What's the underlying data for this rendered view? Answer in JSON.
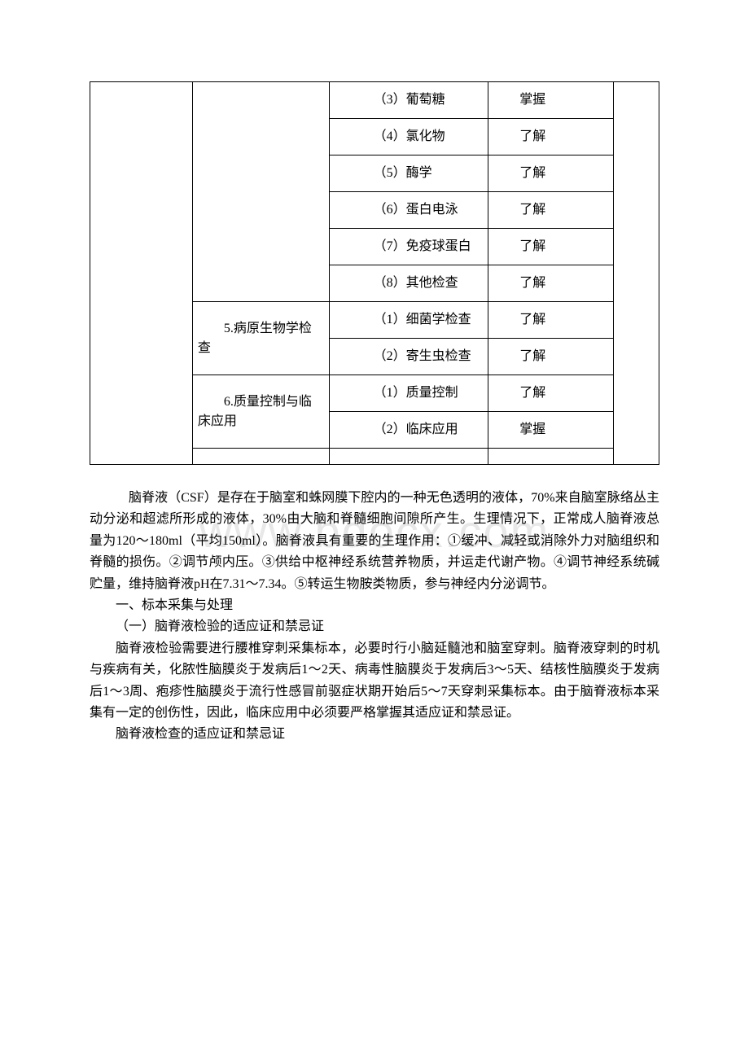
{
  "watermark": "www.bdocx.com",
  "table": {
    "sections": [
      {
        "label": "",
        "rows": [
          {
            "item": "　（3）葡萄糖",
            "level": "掌握"
          },
          {
            "item": "　（4）氯化物",
            "level": "了解"
          },
          {
            "item": "　（5）酶学",
            "level": "了解"
          },
          {
            "item": "　（6）蛋白电泳",
            "level": "了解"
          },
          {
            "item": "　（7）免疫球蛋白",
            "level": "了解"
          },
          {
            "item": "　（8）其他检查",
            "level": "了解"
          }
        ]
      },
      {
        "label": "5.病原生物学检查",
        "rows": [
          {
            "item": "　（1）细菌学检查",
            "level": "了解"
          },
          {
            "item": "　（2）寄生虫检查",
            "level": "了解"
          }
        ]
      },
      {
        "label": "6.质量控制与临床应用",
        "rows": [
          {
            "item": "　（1）质量控制",
            "level": "了解"
          },
          {
            "item": "　（2）临床应用",
            "level": "掌握"
          }
        ]
      }
    ]
  },
  "paragraphs": {
    "intro": "脑脊液（CSF）是存在于脑室和蛛网膜下腔内的一种无色透明的液体，70%来自脑室脉络丛主动分泌和超滤所形成的液体，30%由大脑和脊髓细胞间隙所产生。生理情况下，正常成人脑脊液总量为120～180ml（平均150ml）。脑脊液具有重要的生理作用：①缓冲、减轻或消除外力对脑组织和脊髓的损伤。②调节颅内压。③供给中枢神经系统营养物质，并运走代谢产物。④调节神经系统碱贮量，维持脑脊液pH在7.31～7.34。⑤转运生物胺类物质，参与神经内分泌调节。",
    "h1": "一、标本采集与处理",
    "h2": "（一）脑脊液检验的适应证和禁忌证",
    "p2": "脑脊液检验需要进行腰椎穿刺采集标本，必要时行小脑延髓池和脑室穿刺。脑脊液穿刺的时机与疾病有关，化脓性脑膜炎于发病后1～2天、病毒性脑膜炎于发病后3～5天、结核性脑膜炎于发病后1～3周、疱疹性脑膜炎于流行性感冒前驱症状期开始后5～7天穿刺采集标本。由于脑脊液标本采集有一定的创伤性，因此，临床应用中必须要严格掌握其适应证和禁忌证。",
    "p3": "脑脊液检查的适应证和禁忌证"
  },
  "style": {
    "font_size_body": 16,
    "watermark_color": "#e8e8e8",
    "border_color": "#000000",
    "text_color": "#000000",
    "background_color": "#ffffff"
  }
}
